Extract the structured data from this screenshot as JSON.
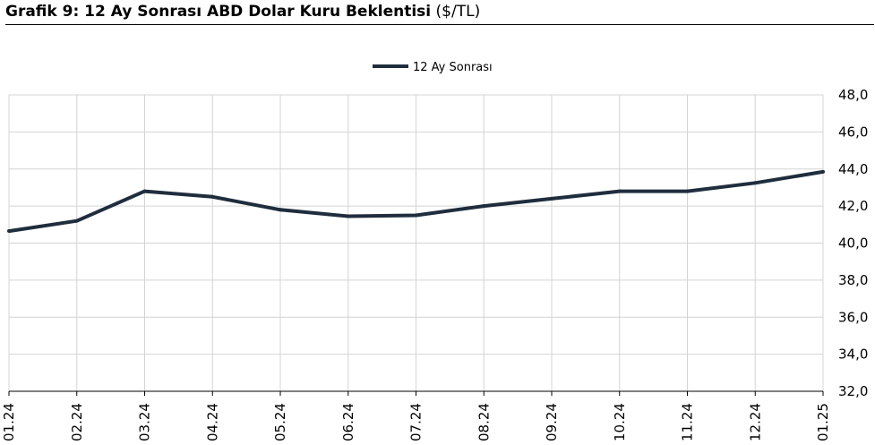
{
  "header": {
    "title_bold": "Grafik 9: 12 Ay Sonrası ABD Dolar Kuru Beklentisi",
    "title_unit": "($/TL)"
  },
  "colors": {
    "series": "#1f2d3d",
    "grid": "#d4d4d4",
    "axis": "#000000"
  },
  "chart_data": {
    "type": "line",
    "title": "Grafik 9: 12 Ay Sonrası ABD Dolar Kuru Beklentisi ($/TL)",
    "categories": [
      "01.24",
      "02.24",
      "03.24",
      "04.24",
      "05.24",
      "06.24",
      "07.24",
      "08.24",
      "09.24",
      "10.24",
      "11.24",
      "12.24",
      "01.25"
    ],
    "series": [
      {
        "name": "12 Ay Sonrası",
        "values": [
          40.65,
          41.2,
          42.8,
          42.5,
          41.8,
          41.45,
          41.5,
          42.0,
          42.4,
          42.8,
          42.8,
          43.25,
          43.85
        ]
      }
    ],
    "ylim": [
      32,
      48
    ],
    "yticks": [
      32,
      34,
      36,
      38,
      40,
      42,
      44,
      46,
      48
    ],
    "ytick_labels": [
      "32,0",
      "34,0",
      "36,0",
      "38,0",
      "40,0",
      "42,0",
      "44,0",
      "46,0",
      "48,0"
    ],
    "y_axis_position": "right",
    "grid": true,
    "legend_position": "top-center"
  }
}
